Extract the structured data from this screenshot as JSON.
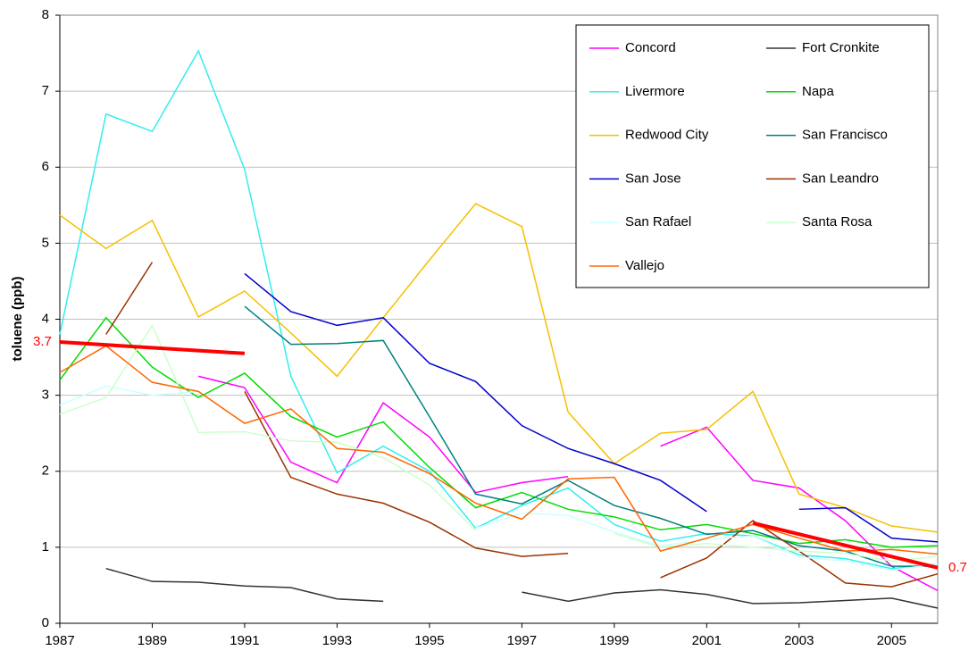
{
  "chart_data": {
    "type": "line",
    "y_label": "toluene (ppb)",
    "x": [
      1987,
      1988,
      1989,
      1990,
      1991,
      1992,
      1993,
      1994,
      1995,
      1996,
      1997,
      1998,
      1999,
      2000,
      2001,
      2002,
      2003,
      2004,
      2005,
      2006
    ],
    "xlim": [
      1987,
      2006
    ],
    "xticks": [
      1987,
      1989,
      1991,
      1993,
      1995,
      1997,
      1999,
      2001,
      2003,
      2005
    ],
    "ylim": [
      0,
      8
    ],
    "yticks": [
      0,
      1,
      2,
      3,
      4,
      5,
      6,
      7,
      8
    ],
    "grid": true,
    "legend": "upper right",
    "series": [
      {
        "name": "Concord",
        "color": "#ff00ff",
        "values": [
          null,
          null,
          null,
          3.25,
          3.1,
          2.12,
          1.85,
          2.9,
          2.45,
          1.72,
          1.85,
          1.93,
          null,
          2.33,
          2.58,
          1.88,
          1.78,
          1.35,
          0.75,
          0.43
        ]
      },
      {
        "name": "Fort Cronkite",
        "color": "#333333",
        "values": [
          null,
          0.72,
          0.55,
          0.54,
          0.49,
          0.47,
          0.32,
          0.29,
          null,
          null,
          0.41,
          0.29,
          0.4,
          0.44,
          0.38,
          0.26,
          0.27,
          0.3,
          0.33,
          0.2
        ]
      },
      {
        "name": "Livermore",
        "color": "#33eeee",
        "values": [
          3.8,
          6.7,
          6.47,
          7.53,
          5.97,
          3.25,
          1.98,
          2.33,
          2.0,
          1.25,
          1.55,
          1.78,
          1.3,
          1.08,
          1.18,
          1.15,
          0.9,
          0.85,
          0.72,
          0.78
        ]
      },
      {
        "name": "Napa",
        "color": "#00dd00",
        "values": [
          3.2,
          4.02,
          3.37,
          2.97,
          3.29,
          2.72,
          2.45,
          2.65,
          2.05,
          1.52,
          1.72,
          1.5,
          1.4,
          1.23,
          1.3,
          1.18,
          1.05,
          1.1,
          1.0,
          1.02
        ]
      },
      {
        "name": "Redwood City",
        "color": "#f5c000",
        "values": [
          5.37,
          4.93,
          5.3,
          4.03,
          4.37,
          3.82,
          3.25,
          4.02,
          4.78,
          5.52,
          5.22,
          2.78,
          2.1,
          2.5,
          2.55,
          3.05,
          1.7,
          1.52,
          1.28,
          1.2
        ]
      },
      {
        "name": "San Francisco",
        "color": "#008080",
        "values": [
          null,
          null,
          null,
          null,
          4.17,
          3.67,
          3.68,
          3.72,
          2.72,
          1.7,
          1.57,
          1.88,
          1.55,
          1.38,
          1.17,
          1.22,
          1.02,
          0.95,
          0.75,
          0.75
        ]
      },
      {
        "name": "San Jose",
        "color": "#0000cc",
        "values": [
          null,
          null,
          null,
          null,
          4.6,
          4.1,
          3.92,
          4.02,
          3.42,
          3.18,
          2.6,
          2.3,
          2.1,
          1.88,
          1.47,
          null,
          1.5,
          1.52,
          1.12,
          1.07
        ]
      },
      {
        "name": "San Leandro",
        "color": "#993300",
        "values": [
          null,
          3.8,
          4.75,
          null,
          3.05,
          1.92,
          1.7,
          1.58,
          1.33,
          0.99,
          0.88,
          0.92,
          null,
          0.6,
          0.86,
          1.35,
          0.95,
          0.53,
          0.48,
          0.65
        ]
      },
      {
        "name": "San Rafael",
        "color": "#ccffff",
        "values": [
          2.87,
          3.12,
          3.0,
          3.05,
          null,
          null,
          null,
          null,
          null,
          1.25,
          1.45,
          1.42,
          1.2,
          1.02,
          1.1,
          1.15,
          0.87,
          0.82,
          0.7,
          0.78
        ]
      },
      {
        "name": "Santa Rosa",
        "color": "#ccffcc",
        "values": [
          2.75,
          2.97,
          3.92,
          2.51,
          2.52,
          2.4,
          2.38,
          2.18,
          1.82,
          1.22,
          null,
          null,
          1.18,
          1.0,
          1.05,
          1.0,
          0.95,
          0.92,
          0.82,
          0.88
        ]
      },
      {
        "name": "Vallejo",
        "color": "#ff6600",
        "values": [
          3.3,
          3.65,
          3.17,
          3.05,
          2.63,
          2.82,
          2.3,
          2.25,
          1.97,
          1.58,
          1.37,
          1.9,
          1.92,
          0.95,
          1.12,
          1.3,
          1.12,
          0.95,
          0.97,
          0.91
        ]
      }
    ],
    "trend_lines": [
      {
        "color": "#ff0000",
        "x": [
          1987,
          1991
        ],
        "values": [
          3.7,
          3.55
        ],
        "value_labels": [
          "3.7",
          null
        ]
      },
      {
        "color": "#ff0000",
        "x": [
          2002,
          2006
        ],
        "values": [
          1.32,
          0.73
        ],
        "value_labels": [
          null,
          "0.7"
        ]
      }
    ]
  }
}
